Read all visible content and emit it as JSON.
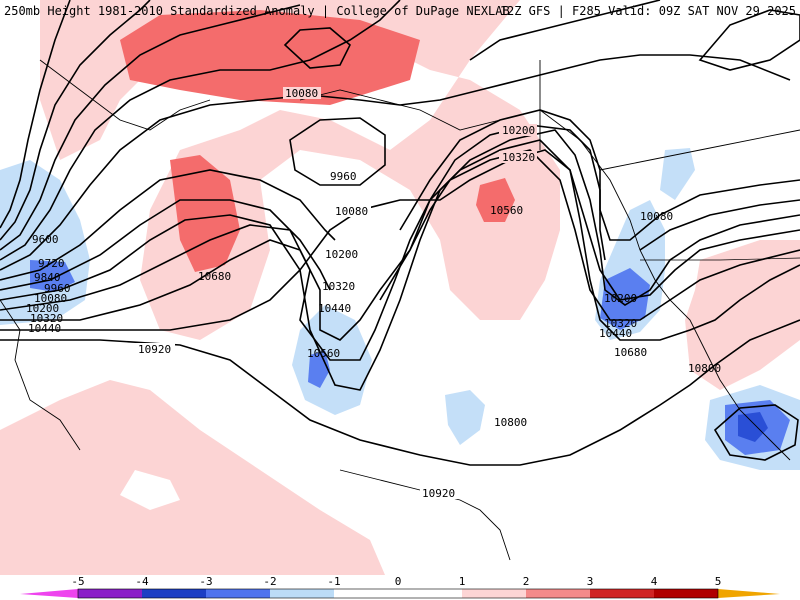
{
  "header": {
    "title_left": "250mb Height 1981-2010 Standardized Anomaly | College of DuPage NEXLAB",
    "title_right": "12Z GFS | F285 Valid: 09Z SAT NOV 29 2025"
  },
  "contour_labels": [
    {
      "id": "l1",
      "text": "10080"
    },
    {
      "id": "l2",
      "text": "9960"
    },
    {
      "id": "l3",
      "text": "10080"
    },
    {
      "id": "l4",
      "text": "10200"
    },
    {
      "id": "l5",
      "text": "10320"
    },
    {
      "id": "l6",
      "text": "10440"
    },
    {
      "id": "l7",
      "text": "10560"
    },
    {
      "id": "l8",
      "text": "10680"
    },
    {
      "id": "l9",
      "text": "10920"
    },
    {
      "id": "l10",
      "text": "9600"
    },
    {
      "id": "l11",
      "text": "9720"
    },
    {
      "id": "l12",
      "text": "9840"
    },
    {
      "id": "l13",
      "text": "9960"
    },
    {
      "id": "l14",
      "text": "10080"
    },
    {
      "id": "l15",
      "text": "10200"
    },
    {
      "id": "l16",
      "text": "10320"
    },
    {
      "id": "l17",
      "text": "10440"
    },
    {
      "id": "l18",
      "text": "10200"
    },
    {
      "id": "l19",
      "text": "10320"
    },
    {
      "id": "l20",
      "text": "10560"
    },
    {
      "id": "l21",
      "text": "10080"
    },
    {
      "id": "l22",
      "text": "10200"
    },
    {
      "id": "l23",
      "text": "10320"
    },
    {
      "id": "l24",
      "text": "10440"
    },
    {
      "id": "l25",
      "text": "10680"
    },
    {
      "id": "l26",
      "text": "10800"
    },
    {
      "id": "l27",
      "text": "10800"
    },
    {
      "id": "l28",
      "text": "10920"
    }
  ],
  "colorbar": {
    "ticks": [
      "-5",
      "-4",
      "-3",
      "-2",
      "-1",
      "0",
      "1",
      "2",
      "3",
      "4",
      "5"
    ],
    "colors": {
      "m5": "#ee44ee",
      "m4": "#8a1fc8",
      "m3": "#1c3fc4",
      "m2": "#4f73ee",
      "m1": "#bcdcf7",
      "p1": "#fdd5d5",
      "p2": "#f48a8a",
      "p3": "#d02525",
      "p4": "#b00000",
      "p5": "#f0a500"
    }
  },
  "colors": {
    "pos1": "#fcd4d4",
    "pos2": "#f46c6c",
    "neg1": "#c4dff8",
    "neg2": "#5a7ff0",
    "neg3": "#2a4fd6",
    "contour": "#000000",
    "border": "#000000"
  }
}
